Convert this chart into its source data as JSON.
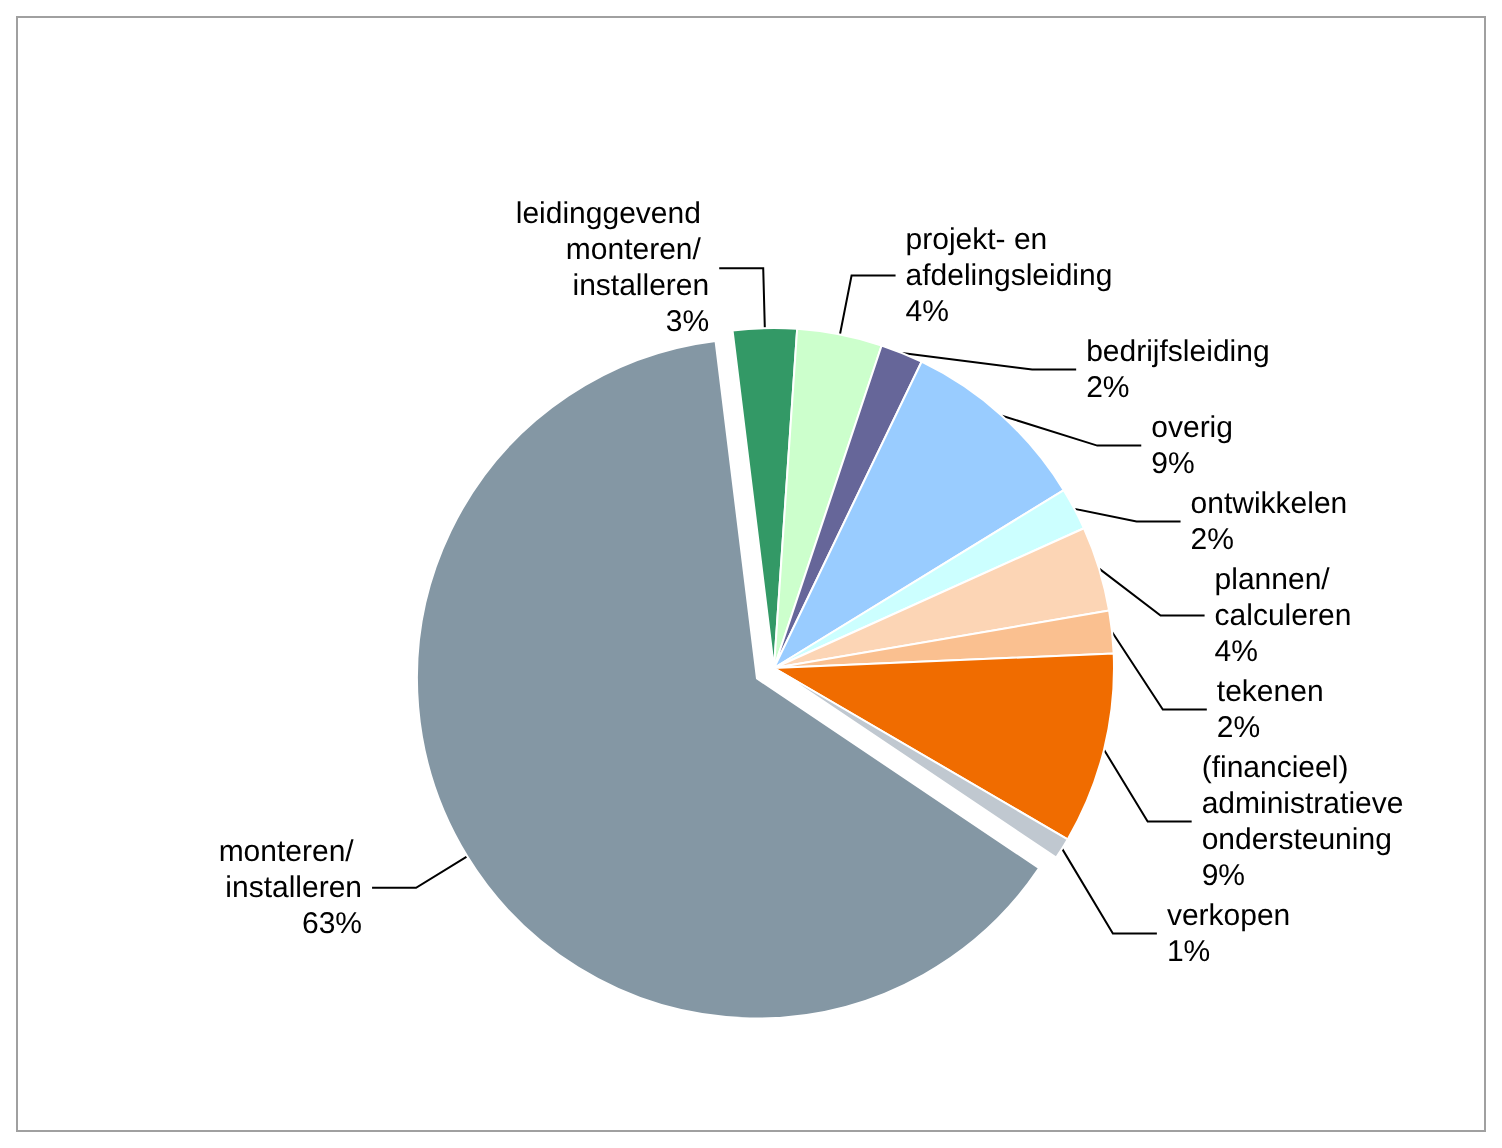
{
  "chart_data": {
    "type": "pie",
    "categories": [
      "leidinggevend monteren/ installeren",
      "projekt- en afdelingsleiding",
      "bedrijfsleiding",
      "overig",
      "ontwikkelen",
      "plannen/ calculeren",
      "tekenen",
      "(financieel) administratieve ondersteuning",
      "verkopen",
      "monteren/ installeren"
    ],
    "values": [
      3,
      4,
      2,
      9,
      2,
      4,
      2,
      9,
      1,
      63
    ],
    "colors": [
      "#339966",
      "#ccffcc",
      "#666699",
      "#99ccff",
      "#ccffff",
      "#fcd5b5",
      "#fac090",
      "#f06c00",
      "#c0c8d0",
      "#8497a4"
    ],
    "value_labels": [
      "3%",
      "4%",
      "2%",
      "9%",
      "2%",
      "4%",
      "2%",
      "9%",
      "1%",
      "63%"
    ],
    "legend": false
  }
}
